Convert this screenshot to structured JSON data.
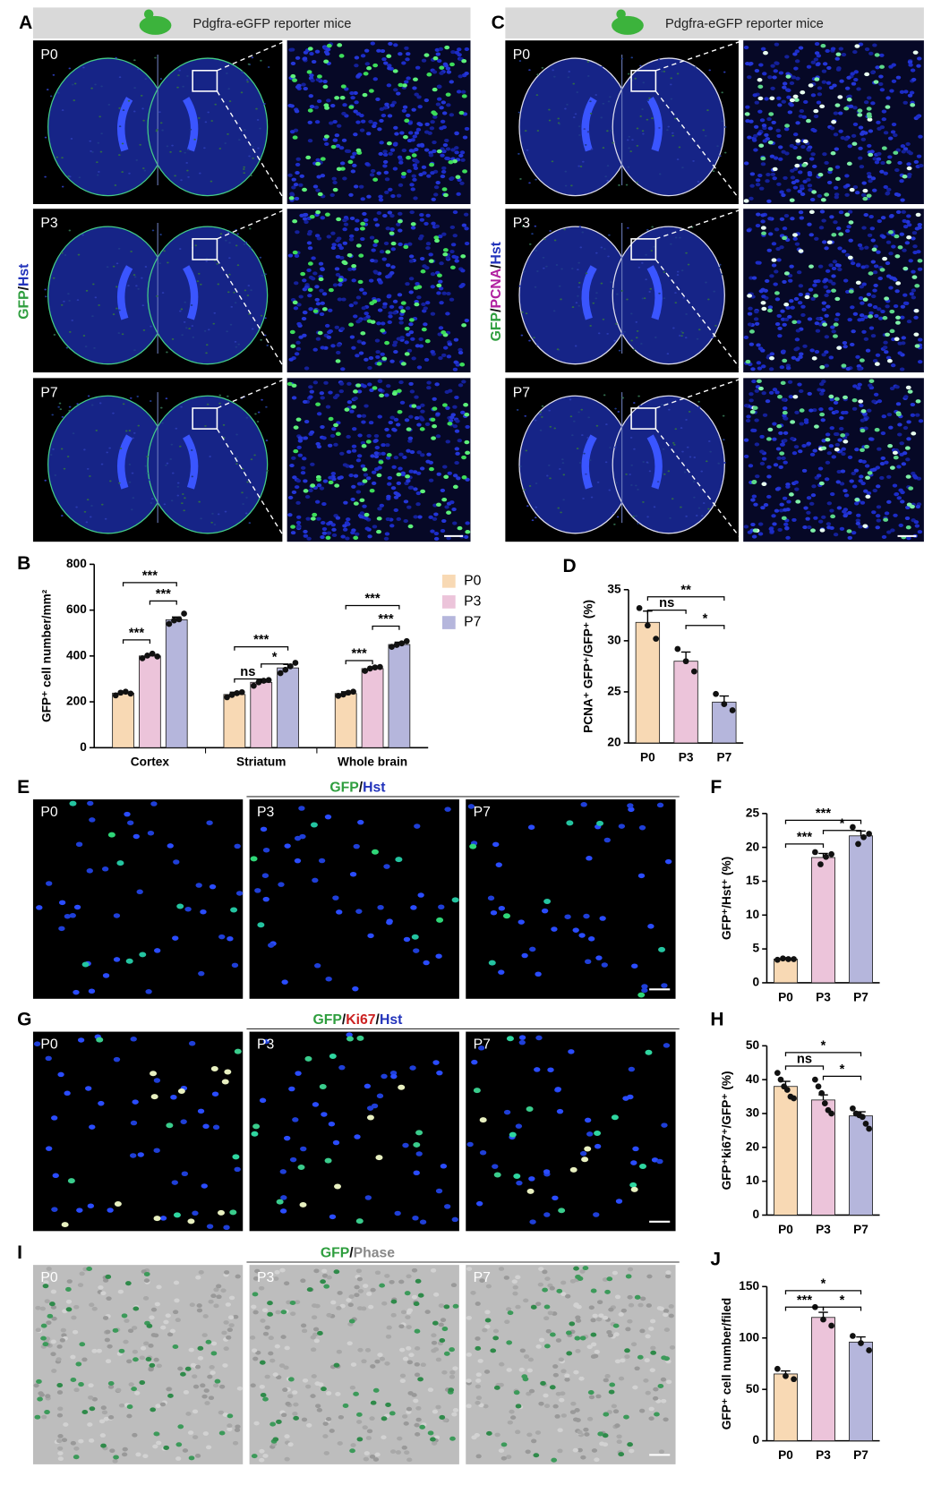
{
  "figure": {
    "A": {
      "letter": "A",
      "header": "Pdgfra-eGFP reporter mice",
      "stain": [
        {
          "text": "GFP",
          "color": "#2e9e3e"
        },
        {
          "text": "/",
          "color": "#111111"
        },
        {
          "text": "Hst",
          "color": "#2233bb"
        }
      ],
      "rows": [
        "P0",
        "P3",
        "P7"
      ]
    },
    "C": {
      "letter": "C",
      "header": "Pdgfra-eGFP reporter mice",
      "stain": [
        {
          "text": "GFP",
          "color": "#2e9e3e"
        },
        {
          "text": "/",
          "color": "#111111"
        },
        {
          "text": "PCNA",
          "color": "#b020a0"
        },
        {
          "text": "/",
          "color": "#111111"
        },
        {
          "text": "Hst",
          "color": "#2233bb"
        }
      ],
      "rows": [
        "P0",
        "P3",
        "P7"
      ]
    },
    "E": {
      "letter": "E",
      "title": [
        {
          "text": "GFP",
          "color": "#2e9e3e"
        },
        {
          "text": "/",
          "color": "#111111"
        },
        {
          "text": "Hst",
          "color": "#2233bb"
        }
      ],
      "panels": [
        "P0",
        "P3",
        "P7"
      ]
    },
    "G": {
      "letter": "G",
      "title": [
        {
          "text": "GFP",
          "color": "#2e9e3e"
        },
        {
          "text": "/",
          "color": "#111111"
        },
        {
          "text": "Ki67",
          "color": "#cc2222"
        },
        {
          "text": "/",
          "color": "#111111"
        },
        {
          "text": "Hst",
          "color": "#2233bb"
        }
      ],
      "panels": [
        "P0",
        "P3",
        "P7"
      ]
    },
    "I": {
      "letter": "I",
      "title": [
        {
          "text": "GFP",
          "color": "#2e9e3e"
        },
        {
          "text": "/",
          "color": "#111111"
        },
        {
          "text": "Phase",
          "color": "#888888"
        }
      ],
      "panels": [
        "P0",
        "P3",
        "P7"
      ]
    }
  },
  "chart_data": [
    {
      "type": "grouped_bar",
      "panel": "B",
      "ylabel": "GFP⁺ cell number/mm²",
      "categories": [
        "Cortex",
        "Striatum",
        "Whole brain"
      ],
      "series": [
        {
          "name": "P0",
          "color": "#f8d9b4",
          "values": [
            238,
            232,
            236
          ],
          "errors": [
            8,
            10,
            8
          ],
          "points": [
            [
              228,
              240,
              244,
              236
            ],
            [
              220,
              230,
              238,
              242
            ],
            [
              226,
              232,
              240,
              244
            ]
          ]
        },
        {
          "name": "P3",
          "color": "#ecc4da",
          "values": [
            400,
            285,
            345
          ],
          "errors": [
            8,
            12,
            8
          ],
          "points": [
            [
              390,
              402,
              410,
              398
            ],
            [
              270,
              285,
              292,
              295
            ],
            [
              335,
              345,
              350,
              352
            ]
          ]
        },
        {
          "name": "P7",
          "color": "#b5b6dc",
          "values": [
            558,
            348,
            450
          ],
          "errors": [
            12,
            15,
            10
          ],
          "points": [
            [
              540,
              555,
              560,
              585
            ],
            [
              325,
              340,
              355,
              370
            ],
            [
              440,
              448,
              455,
              465
            ]
          ]
        }
      ],
      "ylim": [
        0,
        800
      ],
      "yticks": [
        0,
        200,
        400,
        600,
        800
      ],
      "legend": "right",
      "annotations": [
        {
          "text": "***",
          "category": "Cortex",
          "between": [
            "P0",
            "P3"
          ],
          "y": 470
        },
        {
          "text": "***",
          "category": "Cortex",
          "between": [
            "P0",
            "P7"
          ],
          "y": 720
        },
        {
          "text": "***",
          "category": "Cortex",
          "between": [
            "P3",
            "P7"
          ],
          "y": 640
        },
        {
          "text": "ns",
          "category": "Striatum",
          "between": [
            "P0",
            "P3"
          ],
          "y": 300
        },
        {
          "text": "***",
          "category": "Striatum",
          "between": [
            "P0",
            "P7"
          ],
          "y": 440
        },
        {
          "text": "*",
          "category": "Striatum",
          "between": [
            "P3",
            "P7"
          ],
          "y": 365
        },
        {
          "text": "***",
          "category": "Whole brain",
          "between": [
            "P0",
            "P3"
          ],
          "y": 380
        },
        {
          "text": "***",
          "category": "Whole brain",
          "between": [
            "P0",
            "P7"
          ],
          "y": 620
        },
        {
          "text": "***",
          "category": "Whole brain",
          "between": [
            "P3",
            "P7"
          ],
          "y": 530
        }
      ]
    },
    {
      "type": "bar",
      "panel": "D",
      "ylabel": "PCNA⁺ GFP⁺/GFP⁺ (%)",
      "categories": [
        "P0",
        "P3",
        "P7"
      ],
      "colors": [
        "#f8d9b4",
        "#ecc4da",
        "#b5b6dc"
      ],
      "values": [
        31.8,
        28,
        24
      ],
      "errors": [
        1.1,
        0.9,
        0.6
      ],
      "points": [
        [
          33.2,
          31.5,
          30.2
        ],
        [
          29.2,
          28.0,
          27.0
        ],
        [
          24.8,
          23.8,
          23.2
        ]
      ],
      "ylim": [
        20,
        35
      ],
      "yticks": [
        20,
        25,
        30,
        35
      ],
      "annotations": [
        {
          "text": "**",
          "between": [
            "P0",
            "P7"
          ],
          "y": 34.3
        },
        {
          "text": "ns",
          "between": [
            "P0",
            "P3"
          ],
          "y": 33
        },
        {
          "text": "*",
          "between": [
            "P3",
            "P7"
          ],
          "y": 31.5
        }
      ]
    },
    {
      "type": "bar",
      "panel": "F",
      "ylabel": "GFP⁺/Hst⁺ (%)",
      "categories": [
        "P0",
        "P3",
        "P7"
      ],
      "colors": [
        "#f8d9b4",
        "#ecc4da",
        "#b5b6dc"
      ],
      "values": [
        3.5,
        18.5,
        21.7
      ],
      "errors": [
        0.2,
        0.6,
        0.7
      ],
      "points": [
        [
          3.4,
          3.6,
          3.5,
          3.5
        ],
        [
          19.3,
          17.5,
          18.6,
          19.0
        ],
        [
          23.0,
          20.5,
          21.5,
          22.0
        ]
      ],
      "ylim": [
        0,
        25
      ],
      "yticks": [
        0,
        5,
        10,
        15,
        20,
        25
      ],
      "annotations": [
        {
          "text": "***",
          "between": [
            "P0",
            "P7"
          ],
          "y": 24
        },
        {
          "text": "***",
          "between": [
            "P0",
            "P3"
          ],
          "y": 20.5
        },
        {
          "text": "*",
          "between": [
            "P3",
            "P7"
          ],
          "y": 22.5
        }
      ]
    },
    {
      "type": "bar",
      "panel": "H",
      "ylabel": "GFP⁺ki67⁺/GFP⁺ (%)",
      "categories": [
        "P0",
        "P3",
        "P7"
      ],
      "colors": [
        "#f8d9b4",
        "#ecc4da",
        "#b5b6dc"
      ],
      "values": [
        38,
        34,
        29.3
      ],
      "errors": [
        1.5,
        1.5,
        1.2
      ],
      "points": [
        [
          42,
          40,
          38,
          37,
          35,
          34.5
        ],
        [
          40,
          38,
          36,
          33,
          31,
          30
        ],
        [
          31.5,
          30,
          29.5,
          29,
          27,
          25.5
        ]
      ],
      "ylim": [
        0,
        50
      ],
      "yticks": [
        0,
        10,
        20,
        30,
        40,
        50
      ],
      "annotations": [
        {
          "text": "*",
          "between": [
            "P0",
            "P7"
          ],
          "y": 48
        },
        {
          "text": "ns",
          "between": [
            "P0",
            "P3"
          ],
          "y": 44
        },
        {
          "text": "*",
          "between": [
            "P3",
            "P7"
          ],
          "y": 41
        }
      ]
    },
    {
      "type": "bar",
      "panel": "J",
      "ylabel": "GFP⁺ cell number/filed",
      "categories": [
        "P0",
        "P3",
        "P7"
      ],
      "colors": [
        "#f8d9b4",
        "#ecc4da",
        "#b5b6dc"
      ],
      "values": [
        65,
        120,
        96
      ],
      "errors": [
        3,
        5,
        5
      ],
      "points": [
        [
          70,
          63,
          60
        ],
        [
          130,
          118,
          112
        ],
        [
          102,
          95,
          88
        ]
      ],
      "ylim": [
        0,
        150
      ],
      "yticks": [
        0,
        50,
        100,
        150
      ],
      "annotations": [
        {
          "text": "*",
          "between": [
            "P0",
            "P7"
          ],
          "y": 146
        },
        {
          "text": "***",
          "between": [
            "P0",
            "P3"
          ],
          "y": 130
        },
        {
          "text": "*",
          "between": [
            "P3",
            "P7"
          ],
          "y": 130
        }
      ]
    }
  ]
}
